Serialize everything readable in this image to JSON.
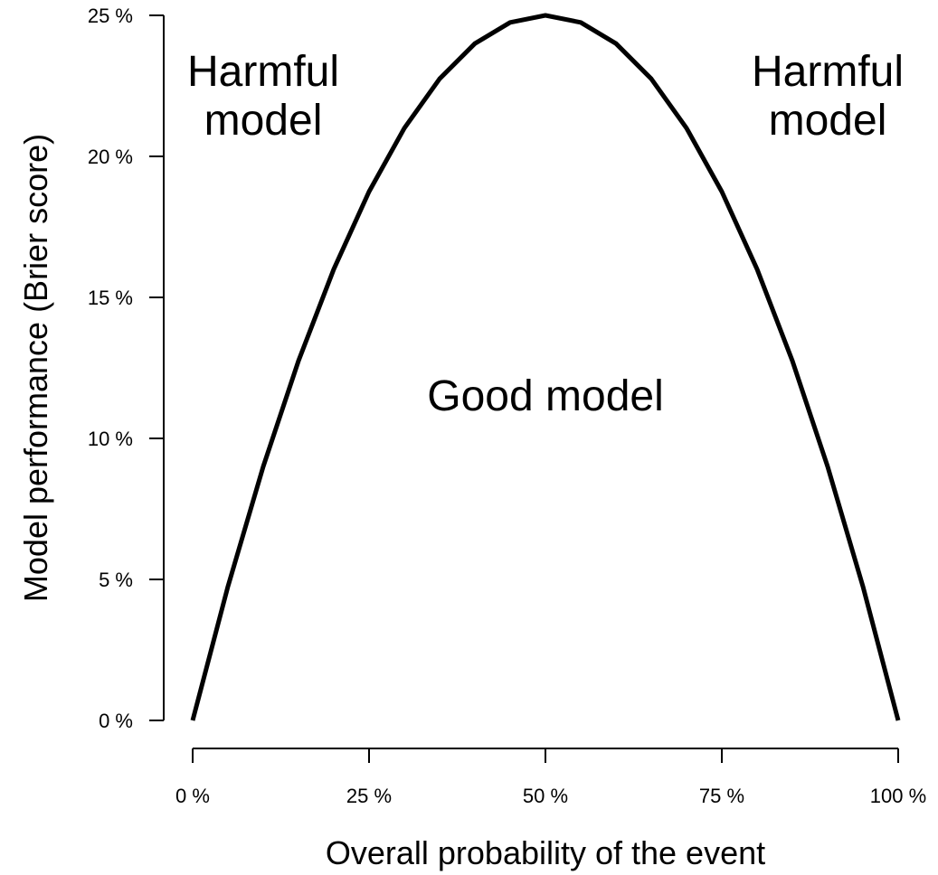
{
  "chart_data": {
    "type": "line",
    "xlabel": "Overall probability of the event",
    "ylabel": "Model performance (Brier score)",
    "xlim": [
      0,
      100
    ],
    "ylim": [
      0,
      25
    ],
    "x_ticks": [
      0,
      25,
      50,
      75,
      100
    ],
    "x_tick_labels": [
      "0 %",
      "25 %",
      "50 %",
      "75 %",
      "100 %"
    ],
    "y_ticks": [
      0,
      5,
      10,
      15,
      20,
      25
    ],
    "y_tick_labels": [
      "0 %",
      "5 %",
      "10 %",
      "15 %",
      "20 %",
      "25 %"
    ],
    "series": [
      {
        "x": [
          0,
          5,
          10,
          15,
          20,
          25,
          30,
          35,
          40,
          45,
          50,
          55,
          60,
          65,
          70,
          75,
          80,
          85,
          90,
          95,
          100
        ],
        "y": [
          0,
          4.75,
          9,
          12.75,
          16,
          18.75,
          21,
          22.75,
          24,
          24.75,
          25,
          24.75,
          24,
          22.75,
          21,
          18.75,
          16,
          12.75,
          9,
          4.75,
          0
        ]
      }
    ],
    "annotations": [
      {
        "lines": [
          "Harmful",
          "model"
        ],
        "x": 10,
        "y": 22.5
      },
      {
        "lines": [
          "Harmful",
          "model"
        ],
        "x": 90,
        "y": 22.5
      },
      {
        "lines": [
          "Good model"
        ],
        "x": 50,
        "y": 11
      }
    ],
    "grid": false,
    "line_color": "#000000"
  }
}
